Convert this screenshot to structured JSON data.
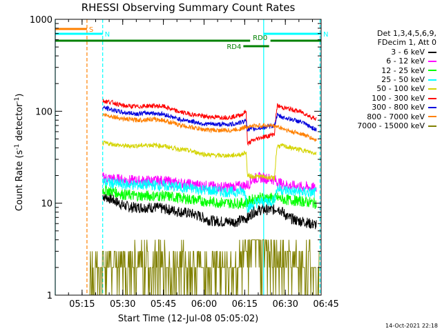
{
  "chart_data": {
    "type": "line",
    "title": "RHESSI Observing Summary Count Rates",
    "xlabel": "Start Time (12-Jul-08 05:05:02)",
    "ylabel_main": "Count Rate (s",
    "ylabel_sup1": "-1",
    "ylabel_mid": " detector",
    "ylabel_sup2": "-1",
    "ylabel_end": ")",
    "yscale": "log",
    "ylim": [
      1,
      1000
    ],
    "xlim_minutes": [
      5.1,
      103.2
    ],
    "x_ticks": [
      {
        "m": 15,
        "label": "05:15"
      },
      {
        "m": 30,
        "label": "05:30"
      },
      {
        "m": 45,
        "label": "05:45"
      },
      {
        "m": 60,
        "label": "06:00"
      },
      {
        "m": 75,
        "label": "06:15"
      },
      {
        "m": 90,
        "label": "06:30"
      },
      {
        "m": 105,
        "label": "06:45"
      }
    ],
    "y_ticks": [
      {
        "v": 1,
        "label": "1"
      },
      {
        "v": 10,
        "label": "10"
      },
      {
        "v": 100,
        "label": "100"
      },
      {
        "v": 1000,
        "label": "1000"
      }
    ],
    "legend_header": [
      "Det 1,3,4,5,6,9,",
      "FDecim 1, Att 0"
    ],
    "series": [
      {
        "name": "3 - 6 keV",
        "color": "#000000",
        "x": [
          22.6,
          26,
          30,
          33,
          37,
          42,
          47,
          52,
          57,
          62,
          67,
          72,
          75,
          76.5,
          78,
          81,
          84,
          86,
          87,
          89,
          91,
          94,
          97,
          99,
          101.5
        ],
        "y": [
          12,
          11,
          9.5,
          9,
          9,
          9,
          8.5,
          8,
          7.5,
          6.5,
          6.3,
          6.3,
          6.8,
          7,
          8,
          8.5,
          8.5,
          8.5,
          9,
          8,
          7,
          6.5,
          6.3,
          6,
          5.8
        ]
      },
      {
        "name": "6 - 12 keV",
        "color": "#ff00ff",
        "x": [
          22.6,
          26,
          30,
          35,
          40,
          45,
          50,
          55,
          60,
          65,
          70,
          75,
          76.5,
          78,
          81,
          84,
          86,
          87,
          89,
          92,
          96,
          99,
          101.5
        ],
        "y": [
          19,
          18.5,
          18,
          17.5,
          17.5,
          17.5,
          16.5,
          16,
          15.5,
          15,
          15,
          15.5,
          16,
          18.5,
          19,
          18.5,
          18,
          17,
          16,
          15.5,
          15,
          14.8,
          14.5
        ]
      },
      {
        "name": "12 - 25 keV",
        "color": "#00ff00",
        "x": [
          22.6,
          26,
          30,
          35,
          40,
          45,
          50,
          55,
          60,
          65,
          70,
          75,
          76.5,
          78,
          81,
          84,
          86,
          87,
          89,
          92,
          96,
          99,
          101.5
        ],
        "y": [
          14,
          13.5,
          12.5,
          12,
          12,
          12,
          11.5,
          11,
          10.5,
          10.2,
          10,
          10,
          10.5,
          11,
          11.5,
          11.5,
          11.2,
          11.5,
          11,
          10.8,
          10.5,
          10.2,
          10
        ]
      },
      {
        "name": "25 - 50 keV",
        "color": "#00ffff",
        "x": [
          22.6,
          26,
          30,
          35,
          40,
          45,
          50,
          55,
          60,
          65,
          70,
          75,
          76,
          77,
          79,
          82,
          85,
          86,
          87,
          89,
          92,
          96,
          99,
          101.5
        ],
        "y": [
          17,
          16.5,
          16,
          15.8,
          15.8,
          15.5,
          15,
          14.5,
          14,
          13.5,
          13.2,
          13.5,
          9,
          9.2,
          10,
          10.5,
          10.5,
          11,
          14.5,
          14,
          13.5,
          13.2,
          13,
          13
        ]
      },
      {
        "name": "50 - 100 keV",
        "color": "#d4d400",
        "x": [
          22.6,
          26,
          30,
          35,
          40,
          45,
          50,
          55,
          60,
          65,
          70,
          74,
          75.5,
          76,
          78,
          81,
          84,
          86,
          87,
          89,
          92,
          96,
          99,
          101.5
        ],
        "y": [
          45,
          44,
          42,
          42,
          43,
          42,
          39,
          37,
          34,
          33,
          33,
          34,
          36,
          20,
          19.5,
          19.5,
          19,
          18.5,
          42,
          42,
          40,
          38,
          36,
          35
        ]
      },
      {
        "name": "100 - 300 keV",
        "color": "#ff0000",
        "x": [
          22.6,
          26,
          30,
          35,
          40,
          45,
          50,
          55,
          60,
          65,
          70,
          74,
          75.5,
          76,
          78,
          81,
          84,
          86,
          87,
          89,
          92,
          96,
          99,
          101.5
        ],
        "y": [
          130,
          125,
          115,
          112,
          115,
          113,
          100,
          93,
          88,
          86,
          86,
          92,
          100,
          44,
          48,
          52,
          54,
          57,
          115,
          110,
          105,
          98,
          88,
          82
        ]
      },
      {
        "name": "300 - 800 keV",
        "color": "#0000dd",
        "x": [
          22.6,
          26,
          30,
          35,
          40,
          45,
          50,
          55,
          60,
          65,
          70,
          74,
          75.5,
          76,
          78,
          81,
          84,
          86,
          87,
          89,
          92,
          96,
          99,
          101.5
        ],
        "y": [
          110,
          104,
          97,
          94,
          96,
          93,
          83,
          78,
          73,
          72,
          72,
          76,
          80,
          63,
          64,
          66,
          68,
          70,
          90,
          86,
          82,
          76,
          68,
          63
        ]
      },
      {
        "name": "800 - 7000 keV",
        "color": "#ff8000",
        "x": [
          22.6,
          26,
          30,
          35,
          40,
          45,
          50,
          55,
          60,
          65,
          70,
          74,
          75.5,
          76,
          78,
          81,
          84,
          86,
          87,
          89,
          92,
          96,
          99,
          101.5
        ],
        "y": [
          92,
          88,
          83,
          80,
          82,
          80,
          72,
          67,
          63,
          62,
          62,
          65,
          68,
          68,
          69,
          70,
          70,
          69,
          68,
          65,
          60,
          57,
          52,
          48
        ]
      },
      {
        "name": "7000 - 15000 keV",
        "color": "#808000",
        "x": [],
        "y": []
      }
    ],
    "bars": [
      {
        "label": "S",
        "color": "#ff8000",
        "x0": 5.1,
        "x1": 16.8,
        "level": "top-1"
      },
      {
        "label": "N",
        "color": "#00ffff",
        "x0": 5.1,
        "x1": 22.6,
        "level": "top-2"
      },
      {
        "label": "N",
        "color": "#00ffff",
        "x0": 82.0,
        "x1": 103.2,
        "level": "top-2"
      },
      {
        "label": "RD0",
        "color": "#008000",
        "x0": 5.1,
        "x1": 77.0,
        "level": "top-3"
      },
      {
        "label": "",
        "color": "#008000",
        "x0": 84.5,
        "x1": 103.2,
        "level": "top-3"
      },
      {
        "label": "RD4",
        "color": "#008000",
        "x0": 74.5,
        "x1": 84.0,
        "level": "top-4"
      }
    ],
    "vlines": [
      {
        "m": 5.1,
        "color": "#00ffff",
        "style": "solid"
      },
      {
        "m": 16.8,
        "color": "#ff8000",
        "style": "dashed"
      },
      {
        "m": 22.6,
        "color": "#00ffff",
        "style": "dashed"
      },
      {
        "m": 82.0,
        "color": "#00ffff",
        "style": "solid"
      },
      {
        "m": 102.8,
        "color": "#00ffff",
        "style": "dashed"
      }
    ]
  },
  "footer": "14-Oct-2021 22:18"
}
